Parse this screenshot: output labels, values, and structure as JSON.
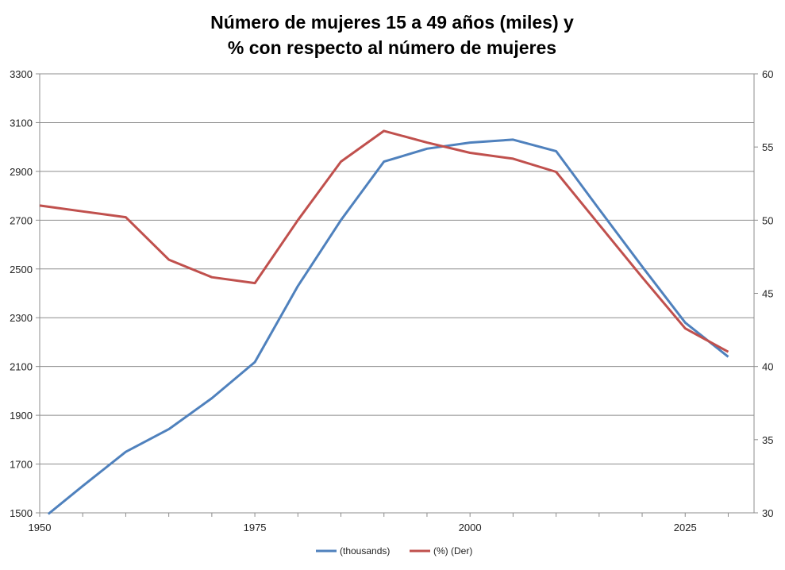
{
  "chart_data": {
    "type": "line",
    "title": [
      "Número de mujeres 15 a 49 años  (miles) y",
      "%  con respecto al número de mujeres"
    ],
    "x": [
      1950,
      1955,
      1960,
      1965,
      1970,
      1975,
      1980,
      1985,
      1990,
      1995,
      2000,
      2005,
      2010,
      2015,
      2020,
      2025,
      2030
    ],
    "xlim": [
      1950,
      2033
    ],
    "x_ticks": [
      "1950",
      "1975",
      "2000",
      "2025"
    ],
    "y_left": {
      "lim": [
        1500,
        3300
      ],
      "ticks": [
        "1500",
        "1700",
        "1900",
        "2100",
        "2300",
        "2500",
        "2700",
        "2900",
        "3100",
        "3300"
      ]
    },
    "y_right": {
      "lim": [
        30,
        60
      ],
      "ticks": [
        "30",
        "35",
        "40",
        "45",
        "50",
        "55",
        "60"
      ]
    },
    "grid": true,
    "legend_position": "bottom",
    "series": [
      {
        "name": "(thousands)",
        "axis": "left",
        "color": "#4f81bd",
        "x": [
          1951,
          1955,
          1960,
          1965,
          1970,
          1975,
          1980,
          1985,
          1990,
          1995,
          2000,
          2005,
          2010,
          2015,
          2020,
          2025,
          2030
        ],
        "values": [
          1495,
          1610,
          1750,
          1843,
          1970,
          2118,
          2430,
          2700,
          2940,
          2993,
          3018,
          3030,
          2983,
          2745,
          2510,
          2280,
          2140
        ]
      },
      {
        "name": "(%) (Der)",
        "axis": "right",
        "color": "#c0504d",
        "x": [
          1950,
          1955,
          1960,
          1965,
          1970,
          1975,
          1980,
          1985,
          1990,
          1995,
          2000,
          2005,
          2010,
          2015,
          2020,
          2025,
          2030
        ],
        "values": [
          51.0,
          50.6,
          50.2,
          47.3,
          46.1,
          45.7,
          50.0,
          54.0,
          56.1,
          55.3,
          54.6,
          54.2,
          53.3,
          49.7,
          46.1,
          42.6,
          41.0
        ]
      }
    ]
  }
}
